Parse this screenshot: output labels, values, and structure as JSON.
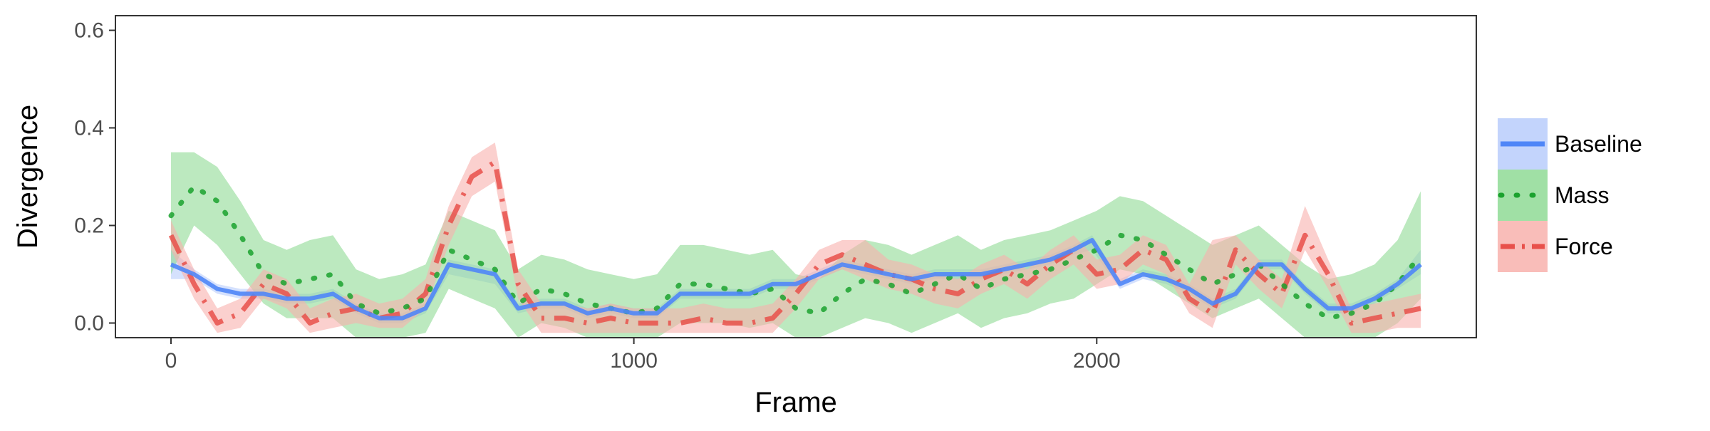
{
  "chart_data": {
    "type": "line",
    "xlabel": "Frame",
    "ylabel": "Divergence",
    "xlim": [
      -120,
      2820
    ],
    "ylim": [
      -0.03,
      0.63
    ],
    "xticks": [
      0,
      1000,
      2000
    ],
    "xtick_labels": [
      "0",
      "1000",
      "2000"
    ],
    "yticks": [
      0.0,
      0.2,
      0.4,
      0.6
    ],
    "ytick_labels": [
      "0.0",
      "0.2",
      "0.4",
      "0.6"
    ],
    "grid": false,
    "legend_position": "right",
    "series": [
      {
        "name": "Baseline",
        "color": "#4f86f7",
        "band_color": "#b9cdfb",
        "dash": "solid",
        "x": [
          0,
          50,
          100,
          150,
          200,
          250,
          300,
          350,
          400,
          450,
          500,
          550,
          600,
          650,
          700,
          750,
          800,
          850,
          900,
          950,
          1000,
          1050,
          1100,
          1150,
          1200,
          1250,
          1300,
          1350,
          1400,
          1450,
          1500,
          1550,
          1600,
          1650,
          1700,
          1750,
          1800,
          1850,
          1900,
          1950,
          1990,
          2050,
          2100,
          2150,
          2200,
          2250,
          2300,
          2350,
          2400,
          2450,
          2500,
          2550,
          2600,
          2650,
          2700
        ],
        "y": [
          0.12,
          0.1,
          0.07,
          0.06,
          0.06,
          0.05,
          0.05,
          0.06,
          0.03,
          0.01,
          0.01,
          0.03,
          0.12,
          0.11,
          0.1,
          0.03,
          0.04,
          0.04,
          0.02,
          0.03,
          0.02,
          0.02,
          0.06,
          0.06,
          0.06,
          0.06,
          0.08,
          0.08,
          0.1,
          0.12,
          0.11,
          0.1,
          0.09,
          0.1,
          0.1,
          0.1,
          0.11,
          0.12,
          0.13,
          0.15,
          0.17,
          0.08,
          0.1,
          0.09,
          0.07,
          0.04,
          0.06,
          0.12,
          0.12,
          0.07,
          0.03,
          0.03,
          0.05,
          0.08,
          0.12
        ],
        "lower": [
          0.09,
          0.09,
          0.06,
          0.05,
          0.05,
          0.04,
          0.04,
          0.05,
          0.02,
          0.0,
          0.0,
          0.02,
          0.1,
          0.09,
          0.08,
          0.02,
          0.03,
          0.03,
          0.01,
          0.02,
          0.01,
          0.01,
          0.05,
          0.05,
          0.05,
          0.05,
          0.07,
          0.07,
          0.09,
          0.11,
          0.1,
          0.09,
          0.08,
          0.09,
          0.09,
          0.09,
          0.1,
          0.11,
          0.12,
          0.14,
          0.15,
          0.07,
          0.09,
          0.08,
          0.06,
          0.03,
          0.05,
          0.11,
          0.11,
          0.06,
          0.02,
          0.02,
          0.04,
          0.07,
          0.1
        ],
        "upper": [
          0.15,
          0.11,
          0.08,
          0.07,
          0.07,
          0.06,
          0.06,
          0.07,
          0.04,
          0.02,
          0.02,
          0.04,
          0.13,
          0.12,
          0.11,
          0.04,
          0.05,
          0.05,
          0.03,
          0.04,
          0.03,
          0.03,
          0.07,
          0.07,
          0.07,
          0.07,
          0.09,
          0.09,
          0.11,
          0.13,
          0.12,
          0.11,
          0.1,
          0.11,
          0.11,
          0.11,
          0.12,
          0.13,
          0.14,
          0.16,
          0.18,
          0.09,
          0.11,
          0.1,
          0.08,
          0.05,
          0.07,
          0.13,
          0.13,
          0.08,
          0.04,
          0.04,
          0.06,
          0.09,
          0.15
        ]
      },
      {
        "name": "Mass",
        "color": "#1ba22e",
        "band_color": "#8fda95",
        "dash": "dotted",
        "x": [
          0,
          50,
          100,
          150,
          200,
          250,
          300,
          350,
          400,
          450,
          500,
          550,
          600,
          650,
          700,
          750,
          800,
          850,
          900,
          950,
          1000,
          1050,
          1100,
          1150,
          1200,
          1250,
          1300,
          1350,
          1400,
          1450,
          1500,
          1550,
          1600,
          1650,
          1700,
          1750,
          1800,
          1850,
          1900,
          1950,
          2000,
          2050,
          2100,
          2150,
          2200,
          2250,
          2300,
          2350,
          2400,
          2450,
          2500,
          2550,
          2600,
          2650,
          2700
        ],
        "y": [
          0.22,
          0.28,
          0.25,
          0.18,
          0.1,
          0.08,
          0.09,
          0.1,
          0.04,
          0.02,
          0.03,
          0.05,
          0.15,
          0.13,
          0.11,
          0.04,
          0.07,
          0.06,
          0.04,
          0.03,
          0.02,
          0.03,
          0.08,
          0.08,
          0.07,
          0.06,
          0.07,
          0.03,
          0.02,
          0.06,
          0.09,
          0.08,
          0.06,
          0.08,
          0.1,
          0.07,
          0.09,
          0.1,
          0.11,
          0.13,
          0.15,
          0.18,
          0.17,
          0.14,
          0.11,
          0.08,
          0.1,
          0.12,
          0.08,
          0.04,
          0.01,
          0.02,
          0.04,
          0.08,
          0.14
        ],
        "lower": [
          0.1,
          0.2,
          0.16,
          0.1,
          0.04,
          0.01,
          0.01,
          0.01,
          -0.03,
          -0.03,
          -0.03,
          -0.02,
          0.07,
          0.05,
          0.03,
          -0.03,
          0.0,
          -0.01,
          -0.03,
          -0.03,
          -0.03,
          -0.03,
          0.0,
          0.0,
          0.0,
          -0.01,
          0.0,
          -0.03,
          -0.03,
          -0.01,
          0.01,
          0.0,
          -0.02,
          0.0,
          0.02,
          -0.01,
          0.01,
          0.02,
          0.04,
          0.05,
          0.08,
          0.11,
          0.1,
          0.07,
          0.04,
          0.01,
          0.03,
          0.05,
          0.01,
          -0.03,
          -0.03,
          -0.03,
          -0.03,
          0.0,
          0.05
        ],
        "upper": [
          0.35,
          0.35,
          0.32,
          0.25,
          0.17,
          0.15,
          0.17,
          0.18,
          0.11,
          0.09,
          0.1,
          0.12,
          0.23,
          0.21,
          0.19,
          0.11,
          0.14,
          0.13,
          0.11,
          0.1,
          0.09,
          0.1,
          0.16,
          0.16,
          0.15,
          0.14,
          0.15,
          0.1,
          0.09,
          0.14,
          0.17,
          0.16,
          0.14,
          0.16,
          0.18,
          0.15,
          0.17,
          0.18,
          0.19,
          0.21,
          0.23,
          0.26,
          0.25,
          0.22,
          0.19,
          0.16,
          0.18,
          0.2,
          0.16,
          0.12,
          0.09,
          0.1,
          0.12,
          0.17,
          0.27
        ]
      },
      {
        "name": "Force",
        "color": "#e8504a",
        "band_color": "#f8b1ad",
        "dash": "dashdot",
        "x": [
          0,
          50,
          100,
          150,
          200,
          250,
          300,
          350,
          400,
          450,
          500,
          550,
          600,
          650,
          700,
          750,
          800,
          850,
          900,
          950,
          1000,
          1050,
          1100,
          1150,
          1200,
          1250,
          1300,
          1350,
          1400,
          1450,
          1500,
          1550,
          1600,
          1650,
          1700,
          1750,
          1800,
          1850,
          1900,
          1950,
          2000,
          2050,
          2100,
          2150,
          2200,
          2250,
          2300,
          2350,
          2400,
          2450,
          2500,
          2550,
          2600,
          2650,
          2700
        ],
        "y": [
          0.18,
          0.08,
          0.0,
          0.02,
          0.08,
          0.06,
          0.0,
          0.02,
          0.03,
          0.01,
          0.02,
          0.06,
          0.2,
          0.3,
          0.33,
          0.08,
          0.01,
          0.01,
          0.0,
          0.01,
          0.0,
          0.0,
          0.0,
          0.01,
          0.0,
          0.0,
          0.01,
          0.06,
          0.12,
          0.14,
          0.12,
          0.1,
          0.09,
          0.07,
          0.06,
          0.09,
          0.11,
          0.08,
          0.12,
          0.15,
          0.1,
          0.11,
          0.15,
          0.13,
          0.05,
          0.02,
          0.15,
          0.1,
          0.06,
          0.18,
          0.1,
          0.0,
          0.01,
          0.02,
          0.03
        ],
        "lower": [
          0.15,
          0.05,
          -0.02,
          -0.01,
          0.05,
          0.03,
          -0.02,
          -0.01,
          0.0,
          -0.01,
          -0.01,
          0.03,
          0.16,
          0.26,
          0.29,
          0.05,
          -0.02,
          -0.02,
          -0.02,
          -0.02,
          -0.02,
          -0.02,
          -0.02,
          -0.02,
          -0.02,
          -0.02,
          -0.02,
          0.03,
          0.09,
          0.11,
          0.09,
          0.07,
          0.06,
          0.04,
          0.03,
          0.06,
          0.08,
          0.05,
          0.09,
          0.12,
          0.07,
          0.08,
          0.12,
          0.1,
          0.02,
          -0.01,
          0.12,
          0.07,
          0.03,
          0.15,
          0.07,
          -0.02,
          -0.02,
          -0.01,
          -0.01
        ],
        "upper": [
          0.21,
          0.11,
          0.03,
          0.05,
          0.11,
          0.09,
          0.03,
          0.05,
          0.06,
          0.04,
          0.05,
          0.09,
          0.24,
          0.34,
          0.37,
          0.11,
          0.04,
          0.04,
          0.03,
          0.04,
          0.03,
          0.03,
          0.03,
          0.04,
          0.03,
          0.03,
          0.04,
          0.09,
          0.15,
          0.17,
          0.17,
          0.13,
          0.12,
          0.1,
          0.09,
          0.12,
          0.14,
          0.11,
          0.15,
          0.18,
          0.13,
          0.14,
          0.18,
          0.16,
          0.08,
          0.17,
          0.18,
          0.13,
          0.09,
          0.24,
          0.13,
          0.03,
          0.04,
          0.05,
          0.06
        ]
      }
    ]
  }
}
